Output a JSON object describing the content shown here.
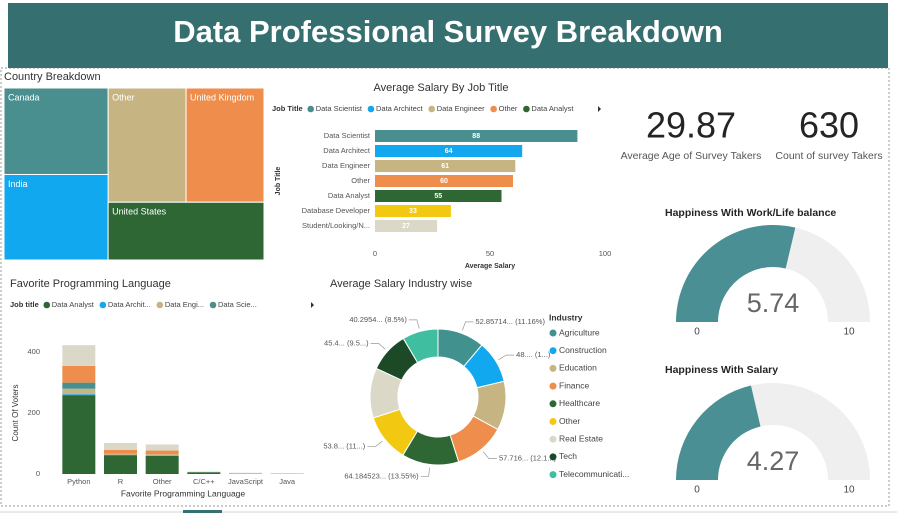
{
  "title": "Data Professional Survey Breakdown",
  "chart_data": [
    {
      "type": "treemap",
      "title": "Country Breakdown",
      "categories": [
        "Canada",
        "Other",
        "United Kingdom",
        "India",
        "United States"
      ],
      "values": [
        90,
        89,
        89,
        89,
        90
      ],
      "colors": [
        "#4a8f8f",
        "#c7b483",
        "#ef8e4c",
        "#12a8ef",
        "#2e6733"
      ]
    },
    {
      "type": "bar",
      "orientation": "horizontal",
      "title": "Average Salary By Job Title",
      "legend_title": "Job Title",
      "xlabel": "Average Salary",
      "ylabel": "Job Title",
      "categories": [
        "Data Scientist",
        "Data Architect",
        "Data Engineer",
        "Other",
        "Data Analyst",
        "Database Developer",
        "Student/Looking/N..."
      ],
      "values": [
        88,
        64,
        61,
        60,
        55,
        33,
        27
      ],
      "colors": [
        "#4a8f8f",
        "#12a8ef",
        "#c7b483",
        "#ef8e4c",
        "#2e6733",
        "#f2c811",
        "#dcd8c8"
      ],
      "xlim": [
        0,
        100
      ],
      "xticks": [
        0,
        50,
        100
      ]
    },
    {
      "type": "bar",
      "stacked": true,
      "title": "Favorite Programming Language",
      "legend_title": "Job title",
      "xlabel": "Favorite Programming Language",
      "ylabel": "Count Of Voters",
      "categories": [
        "Python",
        "R",
        "Other",
        "C/C++",
        "JavaScript",
        "Java"
      ],
      "series": [
        {
          "name": "Data Analyst",
          "color": "#2e6733",
          "values": [
            259,
            62,
            60,
            6,
            0,
            1
          ]
        },
        {
          "name": "Data Archit...",
          "color": "#12a8ef",
          "values": [
            3,
            0,
            0,
            0,
            0,
            0
          ]
        },
        {
          "name": "Data Engi...",
          "color": "#c7b483",
          "values": [
            18,
            5,
            5,
            0,
            0,
            0
          ]
        },
        {
          "name": "Data Scie...",
          "color": "#4a8f8f",
          "values": [
            20,
            0,
            0,
            0,
            0,
            0
          ]
        },
        {
          "color": "#ef8e4c",
          "values": [
            55,
            12,
            12,
            0,
            2,
            0
          ]
        },
        {
          "color": "#dcd8c8",
          "values": [
            68,
            23,
            20,
            2,
            2,
            1
          ]
        }
      ],
      "ylim": [
        0,
        440
      ],
      "yticks": [
        0,
        200,
        400
      ]
    },
    {
      "type": "donut",
      "title": "Average Salary Industry wise",
      "legend_title": "Industry",
      "categories": [
        "Agriculture",
        "Construction",
        "Education",
        "Finance",
        "Healthcare",
        "Other",
        "Real Estate",
        "Tech",
        "Telecommunicati..."
      ],
      "values": [
        52.85714,
        48,
        55,
        57.716,
        64.184523,
        53.8,
        56.3,
        45.4,
        40.2954
      ],
      "value_labels": [
        "52.85714... (11.16%)",
        "48.... (1...)",
        null,
        "57.716... (12.1...)",
        "64.184523... (13.55%)",
        "53.8... (11...)",
        null,
        "45.4... (9.5...)",
        "40.2954... (8.5%)"
      ],
      "colors": [
        "#41918e",
        "#12a8ef",
        "#c7b483",
        "#ef8e4c",
        "#2e6733",
        "#f2c811",
        "#dcd8c8",
        "#1d4a26",
        "#3fbfa0"
      ]
    },
    {
      "type": "card",
      "value": 29.87,
      "label": "Average Age of Survey Takers"
    },
    {
      "type": "card",
      "value": 630,
      "label": "Count of survey Takers"
    },
    {
      "type": "gauge",
      "title": "Happiness With Work/Life balance",
      "value": 5.74,
      "ylim": [
        0,
        10
      ],
      "color": "#4a8f94",
      "track": "#efefef"
    },
    {
      "type": "gauge",
      "title": "Happiness With Salary",
      "value": 4.27,
      "ylim": [
        0,
        10
      ],
      "color": "#4a8f94",
      "track": "#efefef"
    }
  ]
}
